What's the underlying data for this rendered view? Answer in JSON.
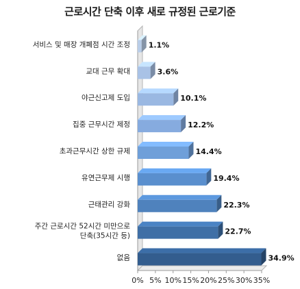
{
  "chart_data": {
    "type": "bar",
    "orientation": "horizontal",
    "title": "근로시간 단축 이후 새로 규정된 근로기준",
    "categories": [
      "서비스 및 매장 개폐점 시간 조정",
      "교대 근무 확대",
      "야근신고제 도입",
      "집중 근무시간 제정",
      "초과근무시간 상한 규제",
      "유연근무제 시행",
      "근태관리 강화",
      "주간 근로시간 52시간 미만으로\n단축(35시간 등)",
      "없음"
    ],
    "values": [
      1.1,
      3.6,
      10.1,
      12.2,
      14.4,
      19.4,
      22.3,
      22.7,
      34.9
    ],
    "value_labels": [
      "1.1%",
      "3.6%",
      "10.1%",
      "12.2%",
      "14.4%",
      "19.4%",
      "22.3%",
      "22.7%",
      "34.9%"
    ],
    "xlim": [
      0,
      35
    ],
    "xticks": [
      "0%",
      "5%",
      "10%",
      "15%",
      "20%",
      "25%",
      "30%",
      "35%"
    ],
    "xtick_values": [
      0,
      5,
      10,
      15,
      20,
      25,
      30,
      35
    ],
    "bar_colors": [
      "#b9cde8",
      "#a9c2e6",
      "#9ab8e2",
      "#86abdf",
      "#6f9fd9",
      "#5a8fce",
      "#4f82bd",
      "#3f6fa6",
      "#335d8e"
    ],
    "grid": false,
    "legend": "none"
  }
}
